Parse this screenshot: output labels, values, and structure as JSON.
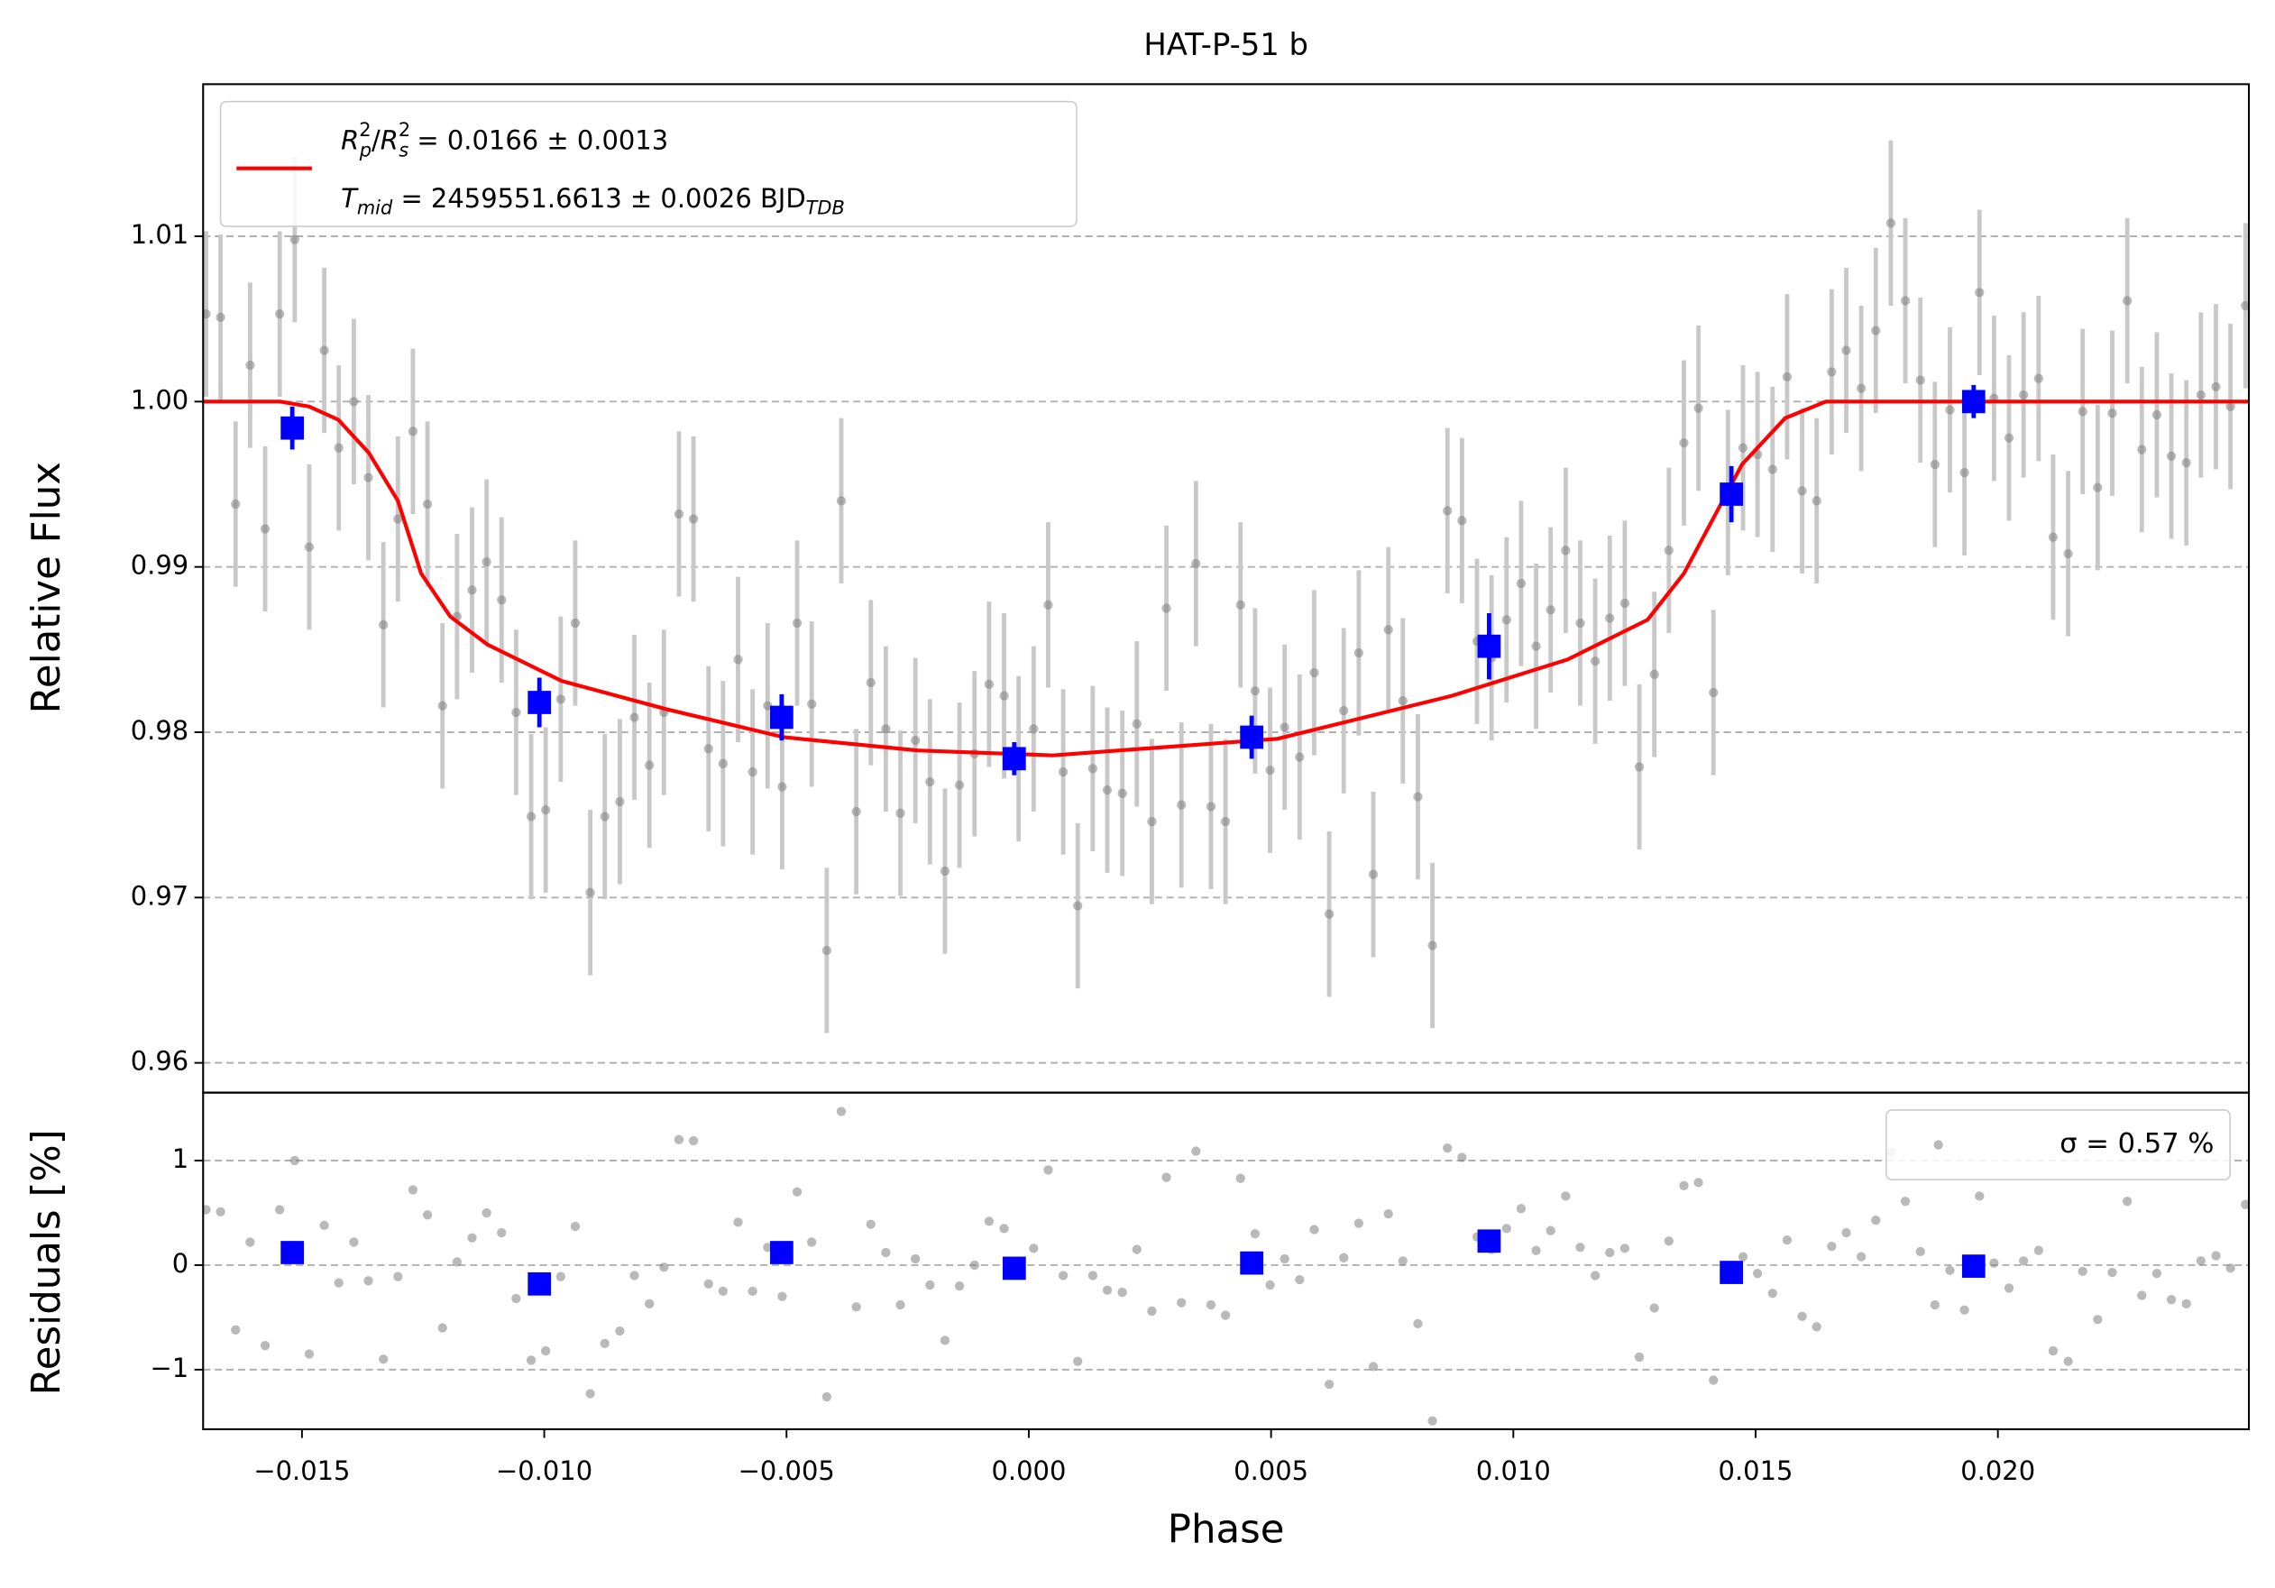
{
  "chart_data": [
    {
      "type": "scatter",
      "title": "HAT-P-51 b",
      "y_label": "Relative Flux",
      "xlim": [
        -0.01704,
        0.02518
      ],
      "ylim": [
        0.9582,
        1.0192
      ],
      "yticks": [
        0.96,
        0.97,
        0.98,
        0.99,
        {
          "value": 1,
          "label": "1.00"
        },
        1.01
      ],
      "grid": true,
      "legend": "upper left",
      "data": {
        "color": "#808080",
        "error_color": "#c8c8c8",
        "error": 0.005,
        "x": [
          -0.01698,
          -0.01668,
          -0.01637,
          -0.01607,
          -0.01576,
          -0.01546,
          -0.01515,
          -0.01485,
          -0.01454,
          -0.01424,
          -0.01393,
          -0.01363,
          -0.01332,
          -0.01302,
          -0.01271,
          -0.01241,
          -0.0121,
          -0.0118,
          -0.01149,
          -0.01119,
          -0.01088,
          -0.01058,
          -0.01027,
          -0.00997,
          -0.00966,
          -0.00936,
          -0.00905,
          -0.00875,
          -0.00844,
          -0.00814,
          -0.00783,
          -0.00753,
          -0.00722,
          -0.00692,
          -0.00661,
          -0.00631,
          -0.006,
          -0.0057,
          -0.00539,
          -0.00509,
          -0.00478,
          -0.00448,
          -0.00417,
          -0.00387,
          -0.00356,
          -0.00326,
          -0.00295,
          -0.00265,
          -0.00234,
          -0.00204,
          -0.00173,
          -0.00143,
          -0.00112,
          -0.00082,
          -0.00051,
          -0.00021,
          0.0001,
          0.0004,
          0.00071,
          0.00101,
          0.00132,
          0.00162,
          0.00193,
          0.00223,
          0.00254,
          0.00284,
          0.00315,
          0.00345,
          0.00376,
          0.00406,
          0.00437,
          0.00467,
          0.00498,
          0.00528,
          0.00559,
          0.00589,
          0.0062,
          0.0065,
          0.00681,
          0.00711,
          0.00742,
          0.00772,
          0.00803,
          0.00833,
          0.00864,
          0.00894,
          0.00925,
          0.00955,
          0.00986,
          0.01016,
          0.01047,
          0.01077,
          0.01108,
          0.01138,
          0.01169,
          0.01199,
          0.0123,
          0.0126,
          0.01291,
          0.01321,
          0.01352,
          0.01382,
          0.01413,
          0.01443,
          0.01474,
          0.01504,
          0.01535,
          0.01565,
          0.01596,
          0.01626,
          0.01657,
          0.01687,
          0.01718,
          0.01748,
          0.01779,
          0.01809,
          0.0184,
          0.0187,
          0.01901,
          0.01931,
          0.01962,
          0.01992,
          0.02023,
          0.02053,
          0.02084,
          0.02114,
          0.02145,
          0.02175,
          0.02206,
          0.02236,
          0.02267,
          0.02297,
          0.02328,
          0.02358,
          0.02389,
          0.02419,
          0.0245,
          0.0248,
          0.02511
        ],
        "values": [
          1.0053,
          1.0051,
          0.9938,
          1.0022,
          0.9923,
          1.0053,
          1.0098,
          0.9912,
          1.0031,
          0.9972,
          1.0,
          0.9954,
          0.9865,
          0.9929,
          0.9982,
          0.9938,
          0.9816,
          0.987,
          0.9886,
          0.9903,
          0.988,
          0.9812,
          0.9749,
          0.9753,
          0.982,
          0.9866,
          0.9703,
          0.9749,
          0.9758,
          0.9809,
          0.978,
          0.9812,
          0.9932,
          0.9929,
          0.979,
          0.9781,
          0.9844,
          0.9776,
          0.9816,
          0.9767,
          0.9866,
          0.9817,
          0.9668,
          0.994,
          0.9752,
          0.983,
          0.9802,
          0.9751,
          0.9795,
          0.977,
          0.9716,
          0.9768,
          0.9787,
          0.9829,
          0.9822,
          0.9784,
          0.9802,
          0.9877,
          0.9776,
          0.9695,
          0.9778,
          0.9765,
          0.9763,
          0.9805,
          0.9746,
          0.9875,
          0.9756,
          0.9902,
          0.9755,
          0.9746,
          0.9877,
          0.9825,
          0.9777,
          0.9803,
          0.9785,
          0.9836,
          0.969,
          0.9813,
          0.9848,
          0.9714,
          0.9862,
          0.9819,
          0.9761,
          0.9671,
          0.9934,
          0.9928,
          0.9855,
          0.9845,
          0.9868,
          0.989,
          0.9852,
          0.9874,
          0.991,
          0.9866,
          0.9843,
          0.9869,
          0.9878,
          0.9779,
          0.9835,
          0.991,
          0.9975,
          0.9996,
          0.9824,
          0.9945,
          0.9972,
          0.9968,
          0.9959,
          1.0015,
          0.9946,
          0.994,
          1.0018,
          1.0031,
          1.0008,
          1.0043,
          1.0108,
          1.0061,
          1.0013,
          0.9962,
          0.9995,
          0.9957,
          1.0066,
          1.0002,
          0.9978,
          1.0004,
          1.0014,
          0.9918,
          0.9908,
          0.9994,
          0.9948,
          0.9993,
          1.0061,
          0.9971,
          0.9992,
          0.9967,
          0.9963,
          1.0004,
          1.0009,
          0.9997,
          1.0058
        ]
      },
      "binned": {
        "color": "#0000ff",
        "x": [
          -0.0152,
          -0.0101,
          -0.0051,
          -0.0003,
          0.0046,
          0.0095,
          0.0145,
          0.0195
        ],
        "values": [
          0.9984,
          0.9818,
          0.9809,
          0.9784,
          0.9797,
          0.9852,
          0.9944,
          1.0
        ],
        "errors": [
          0.0013,
          0.0015,
          0.0014,
          0.001,
          0.0013,
          0.002,
          0.0017,
          0.001
        ]
      },
      "model": {
        "color": "#ff0000",
        "x": [
          -0.01704,
          -0.01545,
          -0.01485,
          -0.01425,
          -0.01362,
          -0.01302,
          -0.01254,
          -0.01194,
          -0.01117,
          -0.00964,
          -0.00749,
          -0.00506,
          -0.0023,
          0.00049,
          0.00513,
          0.00873,
          0.01112,
          0.01277,
          0.01352,
          0.01472,
          0.01561,
          0.01645,
          0.02518
        ],
        "values": [
          1.0,
          1.0,
          0.9997,
          0.9989,
          0.9969,
          0.994,
          0.9896,
          0.987,
          0.9853,
          0.9831,
          0.9814,
          0.9797,
          0.9789,
          0.9786,
          0.9796,
          0.9822,
          0.9844,
          0.9868,
          0.9896,
          0.9962,
          0.999,
          1.0,
          1.0
        ],
        "label_lines": [
          [
            {
              "text": "R",
              "style": "italic"
            },
            {
              "text": "2",
              "style": "sup"
            },
            {
              "text": "p",
              "style": "sub"
            },
            {
              "text": "/",
              "style": "normal"
            },
            {
              "text": "R",
              "style": "italic"
            },
            {
              "text": "2",
              "style": "sup"
            },
            {
              "text": "s",
              "style": "sub"
            },
            {
              "text": " = 0.0166 ± 0.0013",
              "style": "normal"
            }
          ],
          [
            {
              "text": "T",
              "style": "italic"
            },
            {
              "text": "mid",
              "style": "sub"
            },
            {
              "text": " = 2459551.6613 ± 0.0026 BJD",
              "style": "normal"
            },
            {
              "text": "TDB",
              "style": "sub"
            }
          ]
        ]
      }
    },
    {
      "type": "scatter",
      "x_label": "Phase",
      "y_label": "Residuals [%]",
      "xlim": [
        -0.01704,
        0.02518
      ],
      "xticks": [
        {
          "value": -0.015,
          "label": "−0.015"
        },
        {
          "value": -0.01,
          "label": "−0.010"
        },
        {
          "value": -0.005,
          "label": "−0.005"
        },
        {
          "value": 0,
          "label": "0.000"
        },
        {
          "value": 0.005,
          "label": "0.005"
        },
        {
          "value": 0.01,
          "label": "0.010"
        },
        {
          "value": 0.015,
          "label": "0.015"
        },
        {
          "value": 0.02,
          "label": "0.020"
        }
      ],
      "ylim": [
        -1.57,
        1.65
      ],
      "yticks": [
        {
          "value": -1,
          "label": "−1"
        },
        0,
        1
      ],
      "grid": true,
      "legend": "upper right",
      "legend_label": "σ = 0.57 %",
      "residuals": {
        "color": "#808080",
        "values": [
          0.53,
          0.51,
          -0.62,
          0.22,
          -0.77,
          0.53,
          1.0,
          -0.85,
          0.38,
          -0.17,
          0.22,
          -0.15,
          -0.9,
          -0.11,
          0.72,
          0.48,
          -0.6,
          0.03,
          0.26,
          0.5,
          0.31,
          -0.32,
          -0.91,
          -0.82,
          -0.11,
          0.37,
          -1.23,
          -0.75,
          -0.63,
          -0.1,
          -0.37,
          -0.02,
          1.2,
          1.19,
          -0.18,
          -0.25,
          0.41,
          -0.25,
          0.17,
          -0.3,
          0.7,
          0.22,
          -1.26,
          1.47,
          -0.4,
          0.39,
          0.12,
          -0.38,
          0.06,
          -0.19,
          -0.72,
          -0.2,
          0.0,
          0.42,
          0.35,
          -0.02,
          0.16,
          0.91,
          -0.1,
          -0.92,
          -0.1,
          -0.24,
          -0.26,
          0.15,
          -0.44,
          0.84,
          -0.36,
          1.09,
          -0.38,
          -0.48,
          0.83,
          0.3,
          -0.19,
          0.06,
          -0.14,
          0.34,
          -1.14,
          0.07,
          0.4,
          -0.97,
          0.49,
          0.04,
          -0.56,
          -1.49,
          1.12,
          1.03,
          0.27,
          0.15,
          0.35,
          0.54,
          0.14,
          0.33,
          0.66,
          0.17,
          -0.1,
          0.12,
          0.16,
          -0.88,
          -0.41,
          0.23,
          0.76,
          0.79,
          -1.1,
          -0.05,
          0.08,
          -0.08,
          -0.27,
          0.24,
          -0.49,
          -0.59,
          0.18,
          0.31,
          0.08,
          0.43,
          1.08,
          0.61,
          0.13,
          -0.38,
          -0.05,
          -0.43,
          0.66,
          0.02,
          -0.22,
          0.04,
          0.14,
          -0.82,
          -0.92,
          -0.06,
          -0.52,
          -0.07,
          0.61,
          -0.29,
          -0.08,
          -0.33,
          -0.37,
          0.04,
          0.09,
          -0.03,
          0.58
        ]
      },
      "binned_residuals": {
        "color": "#0000ff",
        "values": [
          0.12,
          -0.18,
          0.12,
          -0.03,
          0.02,
          0.23,
          -0.07,
          -0.01
        ]
      }
    }
  ]
}
